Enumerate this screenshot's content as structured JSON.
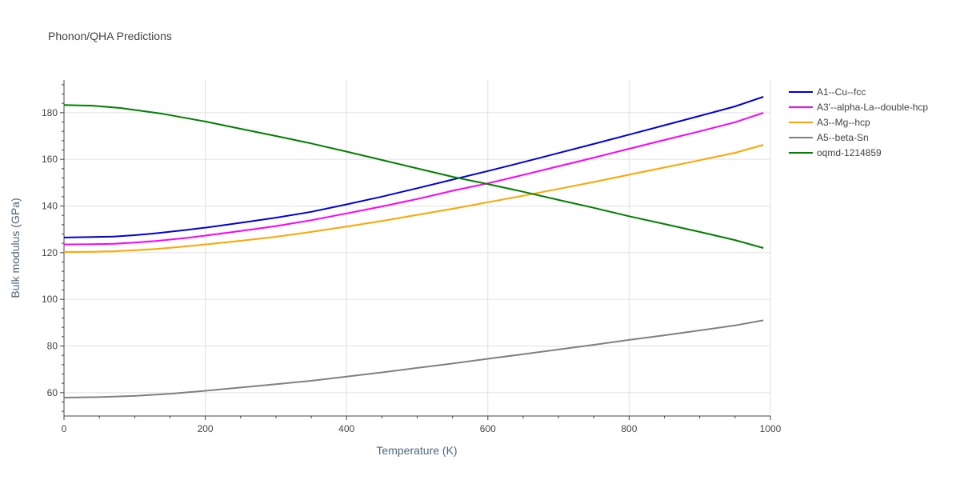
{
  "chart_data": {
    "type": "line",
    "title": "Phonon/QHA Predictions",
    "xlabel": "Temperature (K)",
    "ylabel": "Bulk modulus (GPa)",
    "xlim": [
      0,
      1000
    ],
    "ylim": [
      50,
      194
    ],
    "x_ticks": [
      0,
      200,
      400,
      600,
      800,
      1000
    ],
    "y_ticks": [
      60,
      80,
      100,
      120,
      140,
      160,
      180
    ],
    "grid": true,
    "legend_position": "top-right",
    "series": [
      {
        "name": "A1--Cu--fcc",
        "color": "#0000dd",
        "points": [
          [
            0,
            126.5
          ],
          [
            40,
            126.7
          ],
          [
            70,
            126.9
          ],
          [
            100,
            127.5
          ],
          [
            130,
            128.3
          ],
          [
            170,
            129.6
          ],
          [
            200,
            130.7
          ],
          [
            250,
            132.8
          ],
          [
            300,
            135.0
          ],
          [
            350,
            137.5
          ],
          [
            400,
            140.7
          ],
          [
            450,
            144.0
          ],
          [
            500,
            147.6
          ],
          [
            550,
            151.3
          ],
          [
            600,
            155.0
          ],
          [
            650,
            158.8
          ],
          [
            700,
            162.7
          ],
          [
            750,
            166.6
          ],
          [
            800,
            170.6
          ],
          [
            850,
            174.6
          ],
          [
            900,
            178.6
          ],
          [
            950,
            182.7
          ],
          [
            990,
            186.8
          ]
        ]
      },
      {
        "name": "A3'--alpha-La--double-hcp",
        "color": "#ff00ff",
        "points": [
          [
            0,
            123.5
          ],
          [
            40,
            123.6
          ],
          [
            70,
            123.8
          ],
          [
            100,
            124.3
          ],
          [
            130,
            125.0
          ],
          [
            170,
            126.2
          ],
          [
            200,
            127.3
          ],
          [
            250,
            129.3
          ],
          [
            300,
            131.4
          ],
          [
            350,
            133.9
          ],
          [
            400,
            136.8
          ],
          [
            450,
            139.8
          ],
          [
            500,
            143.0
          ],
          [
            550,
            146.5
          ],
          [
            600,
            149.7
          ],
          [
            650,
            153.3
          ],
          [
            700,
            157.0
          ],
          [
            750,
            160.7
          ],
          [
            800,
            164.5
          ],
          [
            850,
            168.3
          ],
          [
            900,
            172.0
          ],
          [
            950,
            175.9
          ],
          [
            990,
            179.9
          ]
        ]
      },
      {
        "name": "A3--Mg--hcp",
        "color": "#ffa500",
        "points": [
          [
            0,
            120.3
          ],
          [
            40,
            120.4
          ],
          [
            70,
            120.6
          ],
          [
            100,
            121.0
          ],
          [
            130,
            121.6
          ],
          [
            170,
            122.6
          ],
          [
            200,
            123.5
          ],
          [
            250,
            125.1
          ],
          [
            300,
            126.8
          ],
          [
            350,
            128.9
          ],
          [
            400,
            131.2
          ],
          [
            450,
            133.6
          ],
          [
            500,
            136.2
          ],
          [
            550,
            138.8
          ],
          [
            600,
            141.6
          ],
          [
            650,
            144.4
          ],
          [
            700,
            147.3
          ],
          [
            750,
            150.3
          ],
          [
            800,
            153.4
          ],
          [
            850,
            156.5
          ],
          [
            900,
            159.6
          ],
          [
            950,
            162.8
          ],
          [
            990,
            166.2
          ]
        ]
      },
      {
        "name": "A5--beta-Sn",
        "color": "#808080",
        "points": [
          [
            0,
            57.9
          ],
          [
            50,
            58.1
          ],
          [
            100,
            58.6
          ],
          [
            150,
            59.5
          ],
          [
            200,
            60.8
          ],
          [
            250,
            62.2
          ],
          [
            300,
            63.6
          ],
          [
            350,
            65.1
          ],
          [
            400,
            66.9
          ],
          [
            450,
            68.7
          ],
          [
            500,
            70.6
          ],
          [
            550,
            72.5
          ],
          [
            600,
            74.5
          ],
          [
            650,
            76.5
          ],
          [
            700,
            78.5
          ],
          [
            750,
            80.5
          ],
          [
            800,
            82.6
          ],
          [
            850,
            84.6
          ],
          [
            900,
            86.7
          ],
          [
            950,
            88.8
          ],
          [
            990,
            91.0
          ]
        ]
      },
      {
        "name": "oqmd-1214859",
        "color": "#008000",
        "points": [
          [
            0,
            183.3
          ],
          [
            40,
            183.0
          ],
          [
            80,
            182.0
          ],
          [
            140,
            179.5
          ],
          [
            200,
            176.2
          ],
          [
            250,
            173.1
          ],
          [
            300,
            170.0
          ],
          [
            350,
            166.8
          ],
          [
            400,
            163.3
          ],
          [
            450,
            159.7
          ],
          [
            500,
            156.1
          ],
          [
            550,
            152.5
          ],
          [
            600,
            149.4
          ],
          [
            650,
            146.1
          ],
          [
            700,
            142.6
          ],
          [
            750,
            139.2
          ],
          [
            800,
            135.6
          ],
          [
            850,
            132.3
          ],
          [
            900,
            128.9
          ],
          [
            950,
            125.4
          ],
          [
            990,
            122.0
          ]
        ]
      }
    ]
  }
}
